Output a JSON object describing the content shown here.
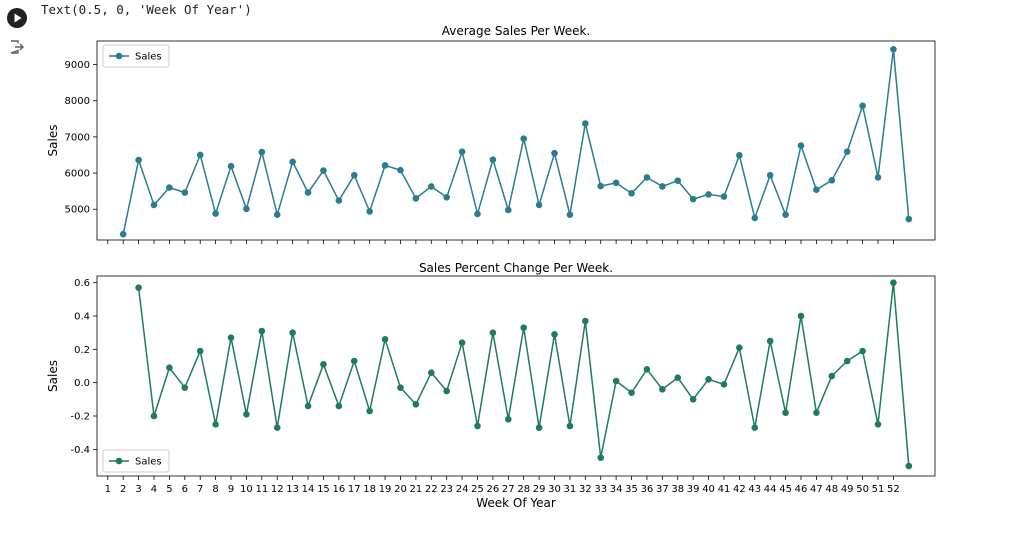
{
  "cell": {
    "output_text": "Text(0.5, 0, 'Week Of Year')",
    "run_button_icon": "play-icon",
    "output_icon": "output-arrow-icon"
  },
  "chart_data": [
    {
      "type": "line",
      "title": "Average Sales Per Week.",
      "ylabel": "Sales",
      "xlabel": "",
      "x": [
        2,
        3,
        4,
        5,
        6,
        7,
        8,
        9,
        10,
        11,
        12,
        13,
        14,
        15,
        16,
        17,
        18,
        19,
        20,
        21,
        22,
        23,
        24,
        25,
        26,
        27,
        28,
        29,
        30,
        31,
        32,
        33,
        34,
        35,
        36,
        37,
        38,
        39,
        40,
        41,
        42,
        43,
        44,
        45,
        46,
        47,
        48,
        49,
        50,
        51,
        52,
        53
      ],
      "series": [
        {
          "name": "Sales",
          "color": "#2a7c8e",
          "values": [
            4310,
            6360,
            5120,
            5600,
            5460,
            6500,
            4880,
            6190,
            5010,
            6580,
            4850,
            6310,
            5460,
            6070,
            5240,
            5940,
            4940,
            6210,
            6080,
            5300,
            5630,
            5330,
            6590,
            4870,
            6370,
            4980,
            6950,
            5120,
            6550,
            4850,
            7370,
            5640,
            5730,
            5440,
            5880,
            5630,
            5790,
            5280,
            5410,
            5350,
            6490,
            4760,
            5940,
            4850,
            6760,
            5540,
            5800,
            6590,
            7860,
            5880,
            9420,
            4730
          ]
        }
      ],
      "ylim": [
        4150,
        9650
      ],
      "yticks": [
        5000,
        6000,
        7000,
        8000,
        9000
      ],
      "xlim": [
        0.3,
        54.7
      ],
      "show_xtick_labels": false,
      "legend": "upper left",
      "grid": false
    },
    {
      "type": "line",
      "title": "Sales Percent Change Per Week.",
      "ylabel": "Sales",
      "xlabel": "Week Of Year",
      "x": [
        3,
        4,
        5,
        6,
        7,
        8,
        9,
        10,
        11,
        12,
        13,
        14,
        15,
        16,
        17,
        18,
        19,
        20,
        21,
        22,
        23,
        24,
        25,
        26,
        27,
        28,
        29,
        30,
        31,
        32,
        33,
        34,
        35,
        36,
        37,
        38,
        39,
        40,
        41,
        42,
        43,
        44,
        45,
        46,
        47,
        48,
        49,
        50,
        51,
        52,
        53
      ],
      "series": [
        {
          "name": "Sales",
          "color": "#1e7a63",
          "values": [
            0.57,
            -0.2,
            0.09,
            -0.03,
            0.19,
            -0.25,
            0.27,
            -0.19,
            0.31,
            -0.27,
            0.3,
            -0.14,
            0.11,
            -0.14,
            0.13,
            -0.17,
            0.26,
            -0.03,
            -0.13,
            0.06,
            -0.05,
            0.24,
            -0.26,
            0.3,
            -0.22,
            0.33,
            -0.27,
            0.29,
            -0.26,
            0.37,
            -0.45,
            0.01,
            -0.06,
            0.08,
            -0.04,
            0.03,
            -0.1,
            0.02,
            -0.01,
            0.21,
            -0.27,
            0.25,
            -0.18,
            0.4,
            -0.18,
            0.04,
            0.13,
            0.19,
            -0.25,
            0.6,
            -0.5
          ]
        }
      ],
      "ylim": [
        -0.56,
        0.64
      ],
      "yticks": [
        -0.4,
        -0.2,
        0.0,
        0.2,
        0.4,
        0.6
      ],
      "xlim": [
        0.3,
        54.7
      ],
      "xticks": [
        "1",
        "2",
        "3",
        "4",
        "5",
        "6",
        "7",
        "8",
        "9",
        "10",
        "11",
        "12",
        "13",
        "14",
        "15",
        "16",
        "17",
        "18",
        "19",
        "20",
        "21",
        "22",
        "23",
        "24",
        "25",
        "26",
        "27",
        "28",
        "29",
        "30",
        "31",
        "32",
        "33",
        "34",
        "35",
        "36",
        "37",
        "38",
        "39",
        "40",
        "41",
        "42",
        "43",
        "44",
        "45",
        "46",
        "47",
        "48",
        "49",
        "50",
        "51",
        "52"
      ],
      "show_xtick_labels": true,
      "legend": "lower left",
      "grid": false
    }
  ]
}
